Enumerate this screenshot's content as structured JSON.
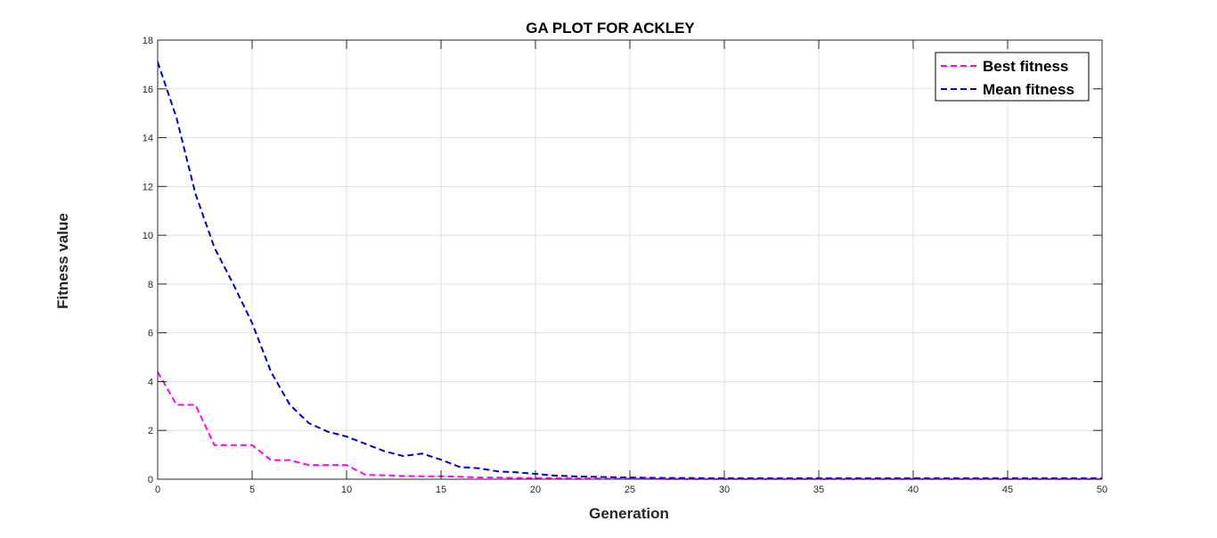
{
  "chart_data": {
    "type": "line",
    "title": "GA PLOT FOR ACKLEY",
    "xlabel": "Generation",
    "ylabel": "Fitness value",
    "xlim": [
      0,
      50
    ],
    "ylim": [
      0,
      18
    ],
    "xticks": [
      0,
      5,
      10,
      15,
      20,
      25,
      30,
      35,
      40,
      45,
      50
    ],
    "yticks": [
      0,
      2,
      4,
      6,
      8,
      10,
      12,
      14,
      16,
      18
    ],
    "grid": true,
    "legend_position": "top-right",
    "x": [
      0,
      1,
      2,
      3,
      4,
      5,
      6,
      7,
      8,
      9,
      10,
      11,
      12,
      13,
      14,
      15,
      16,
      17,
      18,
      19,
      20,
      21,
      22,
      23,
      24,
      25,
      26,
      27,
      28,
      29,
      30,
      31,
      32,
      33,
      34,
      35,
      36,
      37,
      38,
      39,
      40,
      41,
      42,
      43,
      44,
      45,
      46,
      47,
      48,
      49,
      50
    ],
    "series": [
      {
        "name": "Best fitness",
        "color": "#ff00ff",
        "values": [
          4.4,
          3.05,
          3.05,
          1.4,
          1.4,
          1.4,
          0.78,
          0.78,
          0.58,
          0.58,
          0.58,
          0.18,
          0.16,
          0.13,
          0.12,
          0.12,
          0.1,
          0.07,
          0.07,
          0.05,
          0.05,
          0.04,
          0.03,
          0.03,
          0.02,
          0.02,
          0.02,
          0.01,
          0.01,
          0.01,
          0.01,
          0.01,
          0.01,
          0.01,
          0.01,
          0.01,
          0.01,
          0.01,
          0.01,
          0.01,
          0.01,
          0.01,
          0.01,
          0.01,
          0.01,
          0.01,
          0.01,
          0.01,
          0.01,
          0.01,
          0.01
        ]
      },
      {
        "name": "Mean fitness",
        "color": "#0000cc",
        "values": [
          17.1,
          14.8,
          11.7,
          9.5,
          8.0,
          6.4,
          4.4,
          3.05,
          2.3,
          1.95,
          1.75,
          1.45,
          1.15,
          0.95,
          1.05,
          0.8,
          0.5,
          0.45,
          0.32,
          0.28,
          0.22,
          0.15,
          0.12,
          0.1,
          0.08,
          0.07,
          0.06,
          0.05,
          0.05,
          0.04,
          0.04,
          0.04,
          0.04,
          0.04,
          0.04,
          0.04,
          0.04,
          0.04,
          0.04,
          0.04,
          0.04,
          0.04,
          0.04,
          0.04,
          0.04,
          0.04,
          0.04,
          0.04,
          0.04,
          0.04,
          0.04
        ]
      }
    ]
  }
}
